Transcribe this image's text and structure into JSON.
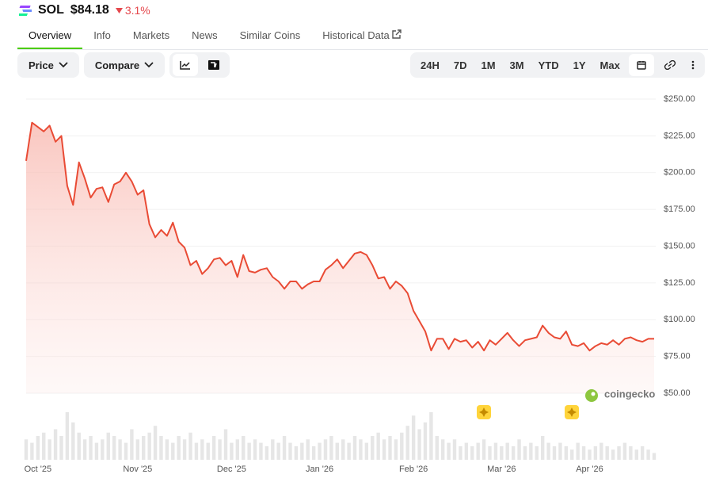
{
  "header": {
    "symbol": "SOL",
    "price": "$84.18",
    "change": "3.1%"
  },
  "tabs": [
    "Overview",
    "Info",
    "Markets",
    "News",
    "Similar Coins",
    "Historical Data"
  ],
  "toolbar": {
    "price": "Price",
    "compare": "Compare",
    "ranges": [
      "24H",
      "7D",
      "1M",
      "3M",
      "YTD",
      "1Y",
      "Max"
    ]
  },
  "watermark": "coingecko",
  "chart_data": {
    "type": "line",
    "series": [
      {
        "name": "Price",
        "color": "#e94b35",
        "values": [
          208,
          234,
          231,
          228,
          232,
          221,
          225,
          191,
          178,
          207,
          196,
          183,
          189,
          190,
          180,
          192,
          194,
          200,
          194,
          185,
          188,
          165,
          156,
          161,
          157,
          166,
          153,
          149,
          137,
          140,
          131,
          135,
          141,
          142,
          137,
          140,
          129,
          144,
          133,
          132,
          134,
          135,
          129,
          126,
          121,
          126,
          126,
          121,
          124,
          126,
          126,
          134,
          137,
          141,
          135,
          140,
          145,
          146,
          144,
          137,
          128,
          129,
          121,
          126,
          123,
          118,
          106,
          99,
          92,
          79,
          87,
          87,
          80,
          87,
          85,
          86,
          81,
          85,
          79,
          86,
          83,
          87,
          91,
          86,
          82,
          86,
          87,
          88,
          96,
          91,
          88,
          87,
          92,
          83,
          82,
          84,
          79,
          82,
          84,
          83,
          86,
          83,
          87,
          88,
          86,
          85,
          87,
          87
        ]
      }
    ],
    "volume": [
      6,
      5,
      7,
      8,
      6,
      9,
      7,
      14,
      11,
      8,
      6,
      7,
      5,
      6,
      8,
      7,
      6,
      5,
      9,
      6,
      7,
      8,
      10,
      7,
      6,
      5,
      7,
      6,
      8,
      5,
      6,
      5,
      7,
      6,
      9,
      5,
      6,
      7,
      5,
      6,
      5,
      4,
      6,
      5,
      7,
      5,
      4,
      5,
      6,
      4,
      5,
      6,
      7,
      5,
      6,
      5,
      7,
      6,
      5,
      7,
      8,
      6,
      7,
      6,
      8,
      10,
      13,
      9,
      11,
      14,
      7,
      6,
      5,
      6,
      4,
      5,
      4,
      5,
      6,
      4,
      5,
      4,
      5,
      4,
      6,
      4,
      5,
      4,
      7,
      5,
      4,
      5,
      4,
      3,
      5,
      4,
      3,
      4,
      5,
      4,
      3,
      4,
      5,
      4,
      3,
      4,
      3,
      2
    ],
    "volume_color": "#e6e6e6",
    "xlim": [
      0,
      107
    ],
    "xticks": [
      {
        "value": 2,
        "label": "Oct '25"
      },
      {
        "value": 19,
        "label": "Nov '25"
      },
      {
        "value": 35,
        "label": "Dec '25"
      },
      {
        "value": 50,
        "label": "Jan '26"
      },
      {
        "value": 66,
        "label": "Feb '26"
      },
      {
        "value": 81,
        "label": "Mar '26"
      },
      {
        "value": 96,
        "label": "Apr '26"
      }
    ],
    "ylim": [
      50,
      250
    ],
    "yticks": [
      {
        "value": 250,
        "label": "$250.00"
      },
      {
        "value": 225,
        "label": "$225.00"
      },
      {
        "value": 200,
        "label": "$200.00"
      },
      {
        "value": 175,
        "label": "$175.00"
      },
      {
        "value": 150,
        "label": "$150.00"
      },
      {
        "value": 125,
        "label": "$125.00"
      },
      {
        "value": 100,
        "label": "$100.00"
      },
      {
        "value": 75,
        "label": "$75.00"
      },
      {
        "value": 50,
        "label": "$50.00"
      }
    ],
    "grid": true
  }
}
